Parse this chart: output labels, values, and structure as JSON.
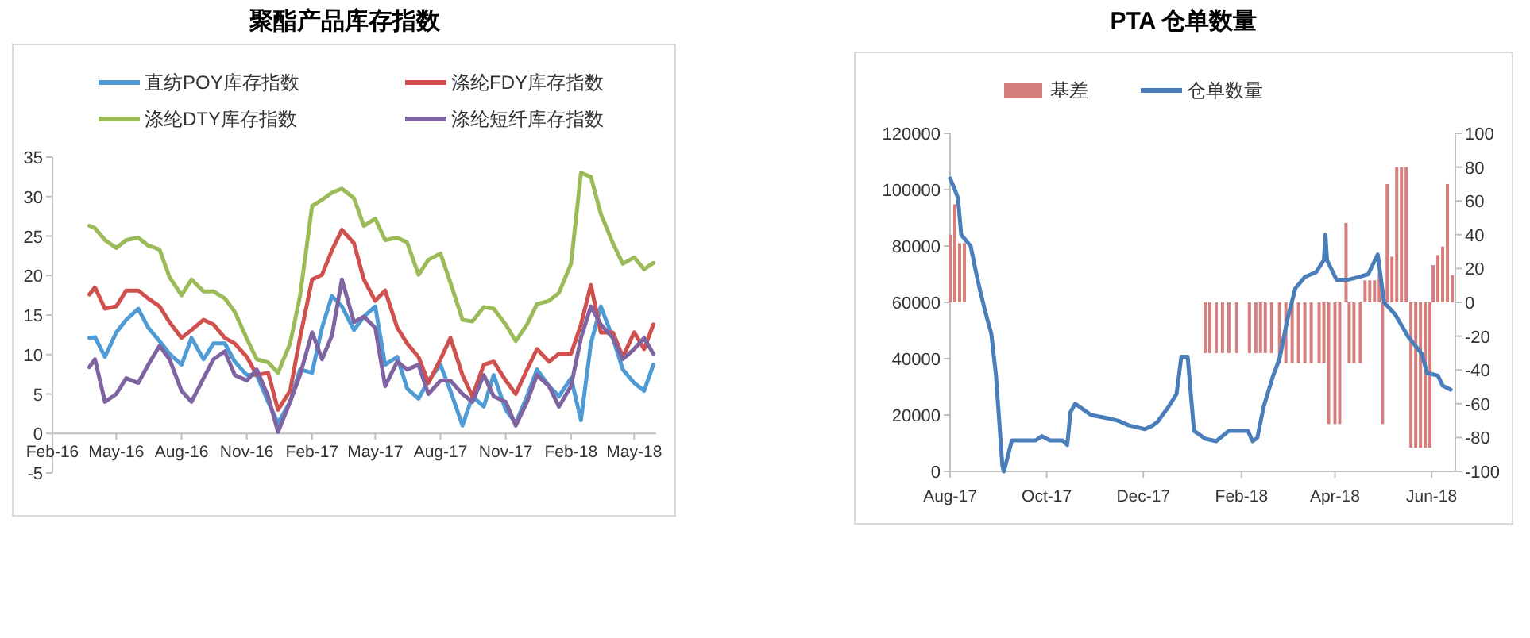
{
  "chart_data": [
    {
      "type": "line",
      "title": "聚酯产品库存指数",
      "legend": "top",
      "x": [
        "2016-03-24",
        "2016-04-01",
        "2016-04-15",
        "2016-05-01",
        "2016-05-15",
        "2016-06-01",
        "2016-06-15",
        "2016-07-01",
        "2016-07-15",
        "2016-08-01",
        "2016-08-15",
        "2016-09-01",
        "2016-09-15",
        "2016-10-01",
        "2016-10-15",
        "2016-11-01",
        "2016-11-15",
        "2016-12-01",
        "2016-12-15",
        "2017-01-01",
        "2017-01-15",
        "2017-02-01",
        "2017-02-15",
        "2017-03-01",
        "2017-03-15",
        "2017-04-01",
        "2017-04-15",
        "2017-05-01",
        "2017-05-15",
        "2017-06-01",
        "2017-06-15",
        "2017-07-01",
        "2017-07-15",
        "2017-08-01",
        "2017-08-15",
        "2017-09-01",
        "2017-09-15",
        "2017-10-01",
        "2017-10-15",
        "2017-11-01",
        "2017-11-15",
        "2017-12-01",
        "2017-12-15",
        "2018-01-01",
        "2018-01-15",
        "2018-02-01",
        "2018-02-15",
        "2018-03-01",
        "2018-03-15",
        "2018-04-01",
        "2018-04-15",
        "2018-05-01",
        "2018-05-15",
        "2018-05-28"
      ],
      "xlim": [
        "2016-02-01",
        "2018-06-01"
      ],
      "xticks": [
        {
          "value": "2016-02-01",
          "label": "Feb-16"
        },
        {
          "value": "2016-05-01",
          "label": "May-16"
        },
        {
          "value": "2016-08-01",
          "label": "Aug-16"
        },
        {
          "value": "2016-11-01",
          "label": "Nov-16"
        },
        {
          "value": "2017-02-01",
          "label": "Feb-17"
        },
        {
          "value": "2017-05-01",
          "label": "May-17"
        },
        {
          "value": "2017-08-01",
          "label": "Aug-17"
        },
        {
          "value": "2017-11-01",
          "label": "Nov-17"
        },
        {
          "value": "2018-02-01",
          "label": "Feb-18"
        },
        {
          "value": "2018-05-01",
          "label": "May-18"
        }
      ],
      "ylim": [
        -5,
        35
      ],
      "yticks": [
        -5,
        0,
        5,
        10,
        15,
        20,
        25,
        30,
        35
      ],
      "series": [
        {
          "name": "直纺POY库存指数",
          "color": "#4f9bd6",
          "values": [
            12.1,
            12.2,
            9.7,
            12.8,
            14.4,
            15.8,
            13.4,
            11.7,
            10.1,
            8.7,
            12.1,
            9.4,
            11.4,
            11.4,
            9.1,
            7.4,
            7.4,
            4,
            1.3,
            4,
            8.1,
            7.7,
            13.4,
            17.4,
            16.1,
            13.1,
            14.8,
            16.1,
            8.7,
            9.7,
            5.7,
            4.4,
            6.7,
            8.7,
            5.4,
            1,
            4.7,
            3.4,
            7.4,
            3,
            1.3,
            4.7,
            8.1,
            6,
            4.7,
            7,
            1.7,
            11.4,
            16.1,
            12.1,
            8.1,
            6.4,
            5.4,
            8.7
          ]
        },
        {
          "name": "涤纶FDY库存指数",
          "color": "#d0504d",
          "values": [
            17.6,
            18.5,
            15.8,
            16.1,
            18.1,
            18.1,
            17.1,
            16.1,
            14.1,
            12.1,
            13.1,
            14.4,
            13.8,
            12.1,
            11.4,
            9.7,
            7.4,
            7.7,
            3,
            5.4,
            12.1,
            19.5,
            20.1,
            23.2,
            25.8,
            24.1,
            19.5,
            16.8,
            18.1,
            13.4,
            11.4,
            9.7,
            6.4,
            9.4,
            12.1,
            7.4,
            4.7,
            8.7,
            9.1,
            6.7,
            5,
            8.1,
            10.7,
            9.1,
            10.1,
            10.1,
            13.8,
            18.8,
            12.8,
            12.8,
            9.7,
            12.8,
            10.7,
            13.8
          ]
        },
        {
          "name": "涤纶DTY库存指数",
          "color": "#9bbb59",
          "values": [
            26.3,
            26,
            24.5,
            23.5,
            24.5,
            24.8,
            23.8,
            23.3,
            19.8,
            17.5,
            19.5,
            18,
            18,
            17.1,
            15.4,
            12,
            9.4,
            9,
            7.7,
            11.4,
            17.4,
            28.8,
            29.6,
            30.5,
            31,
            29.8,
            26.3,
            27.2,
            24.5,
            24.8,
            24.2,
            20.1,
            22,
            22.8,
            19.1,
            14.4,
            14.2,
            16,
            15.8,
            13.8,
            11.7,
            13.8,
            16.4,
            16.8,
            17.8,
            21.5,
            33,
            32.5,
            27.8,
            24.1,
            21.5,
            22.3,
            20.8,
            21.6
          ]
        },
        {
          "name": "涤纶短纤库存指数",
          "color": "#8064a2",
          "values": [
            8.4,
            9.4,
            4,
            5,
            7,
            6.4,
            8.7,
            11.1,
            9.4,
            5.4,
            4,
            7,
            9.4,
            10.4,
            7.4,
            6.7,
            8.1,
            4.7,
            0.2,
            4,
            7.4,
            12.8,
            9.4,
            12.4,
            19.5,
            14.1,
            14.8,
            13.4,
            6,
            9.1,
            8.1,
            8.7,
            5,
            6.7,
            6.7,
            5,
            4,
            7.4,
            4.7,
            4,
            1,
            4,
            7.4,
            6,
            3.4,
            6,
            12.1,
            16.1,
            13.8,
            12.1,
            9.4,
            10.7,
            12.1,
            10.1
          ]
        }
      ]
    },
    {
      "type": "line",
      "title": "PTA 仓单数量",
      "legend": "top",
      "xlim": [
        "2017-08-01",
        "2018-06-16"
      ],
      "xticks": [
        {
          "value": "2017-08-01",
          "label": "Aug-17"
        },
        {
          "value": "2017-10-01",
          "label": "Oct-17"
        },
        {
          "value": "2017-12-01",
          "label": "Dec-17"
        },
        {
          "value": "2018-02-01",
          "label": "Feb-18"
        },
        {
          "value": "2018-04-01",
          "label": "Apr-18"
        },
        {
          "value": "2018-06-01",
          "label": "Jun-18"
        }
      ],
      "ylim": [
        0,
        120000
      ],
      "yticks": [
        0,
        20000,
        40000,
        60000,
        80000,
        100000,
        120000
      ],
      "y2lim": [
        -100,
        100
      ],
      "y2ticks": [
        -100,
        -80,
        -60,
        -40,
        -20,
        0,
        20,
        40,
        60,
        80,
        100
      ],
      "series": [
        {
          "name": "基差",
          "type": "bar",
          "axis": "y2",
          "color": "#d47f7e",
          "x": [
            "2017-08-01",
            "2017-08-04",
            "2017-08-07",
            "2017-08-10",
            "2018-01-09",
            "2018-01-12",
            "2018-01-16",
            "2018-01-20",
            "2018-01-24",
            "2018-01-29",
            "2018-02-06",
            "2018-02-10",
            "2018-02-13",
            "2018-02-16",
            "2018-02-20",
            "2018-02-25",
            "2018-03-01",
            "2018-03-05",
            "2018-03-09",
            "2018-03-13",
            "2018-03-17",
            "2018-03-22",
            "2018-03-25",
            "2018-03-28",
            "2018-04-01",
            "2018-04-04",
            "2018-04-08",
            "2018-04-10",
            "2018-04-13",
            "2018-04-17",
            "2018-04-20",
            "2018-04-23",
            "2018-04-26",
            "2018-04-29",
            "2018-05-01",
            "2018-05-04",
            "2018-05-07",
            "2018-05-10",
            "2018-05-13",
            "2018-05-16",
            "2018-05-19",
            "2018-05-22",
            "2018-05-25",
            "2018-05-28",
            "2018-05-31",
            "2018-06-02",
            "2018-06-05",
            "2018-06-08",
            "2018-06-11",
            "2018-06-14"
          ],
          "values": [
            40,
            58,
            35,
            35,
            -30,
            -30,
            -30,
            -30,
            -30,
            -30,
            -30,
            -30,
            -30,
            -30,
            -30,
            -36,
            -36,
            -36,
            -36,
            -36,
            -36,
            -36,
            -36,
            -72,
            -72,
            -72,
            47,
            -36,
            -36,
            -36,
            13,
            13,
            13,
            17,
            -72,
            70,
            27,
            80,
            80,
            80,
            -86,
            -86,
            -86,
            -86,
            -86,
            22,
            28,
            33,
            70,
            16
          ]
        },
        {
          "name": "仓单数量",
          "color": "#4a7ebb",
          "x": [
            "2017-08-01",
            "2017-08-04",
            "2017-08-06",
            "2017-08-08",
            "2017-08-14",
            "2017-08-17",
            "2017-08-20",
            "2017-08-24",
            "2017-08-27",
            "2017-08-30",
            "2017-09-03",
            "2017-09-04",
            "2017-09-09",
            "2017-09-24",
            "2017-09-28",
            "2017-10-03",
            "2017-10-11",
            "2017-10-14",
            "2017-10-16",
            "2017-10-19",
            "2017-10-24",
            "2017-10-29",
            "2017-11-07",
            "2017-11-15",
            "2017-11-22",
            "2017-12-02",
            "2017-12-07",
            "2017-12-10",
            "2017-12-17",
            "2017-12-22",
            "2017-12-25",
            "2017-12-29",
            "2018-01-02",
            "2018-01-09",
            "2018-01-16",
            "2018-01-24",
            "2018-02-05",
            "2018-02-08",
            "2018-02-11",
            "2018-02-15",
            "2018-02-21",
            "2018-02-25",
            "2018-03-02",
            "2018-03-07",
            "2018-03-13",
            "2018-03-20",
            "2018-03-25",
            "2018-03-26",
            "2018-03-27",
            "2018-04-02",
            "2018-04-09",
            "2018-04-16",
            "2018-04-22",
            "2018-04-28",
            "2018-05-02",
            "2018-05-09",
            "2018-05-17",
            "2018-05-26",
            "2018-05-29",
            "2018-06-05",
            "2018-06-08",
            "2018-06-13"
          ],
          "values": [
            104000,
            100000,
            97000,
            84000,
            80000,
            71600,
            64000,
            55000,
            49000,
            34000,
            2000,
            0,
            11000,
            11000,
            12500,
            11000,
            11000,
            9400,
            21000,
            24000,
            22000,
            20000,
            19000,
            18000,
            16300,
            15000,
            16300,
            17600,
            23000,
            27500,
            40700,
            40700,
            14400,
            11600,
            10700,
            14400,
            14400,
            10700,
            12000,
            23000,
            34000,
            40000,
            54000,
            65000,
            69000,
            70700,
            75000,
            84000,
            75000,
            68000,
            68000,
            69000,
            70000,
            77000,
            60000,
            55700,
            48000,
            41600,
            35000,
            34000,
            30400,
            29000
          ]
        }
      ]
    }
  ]
}
